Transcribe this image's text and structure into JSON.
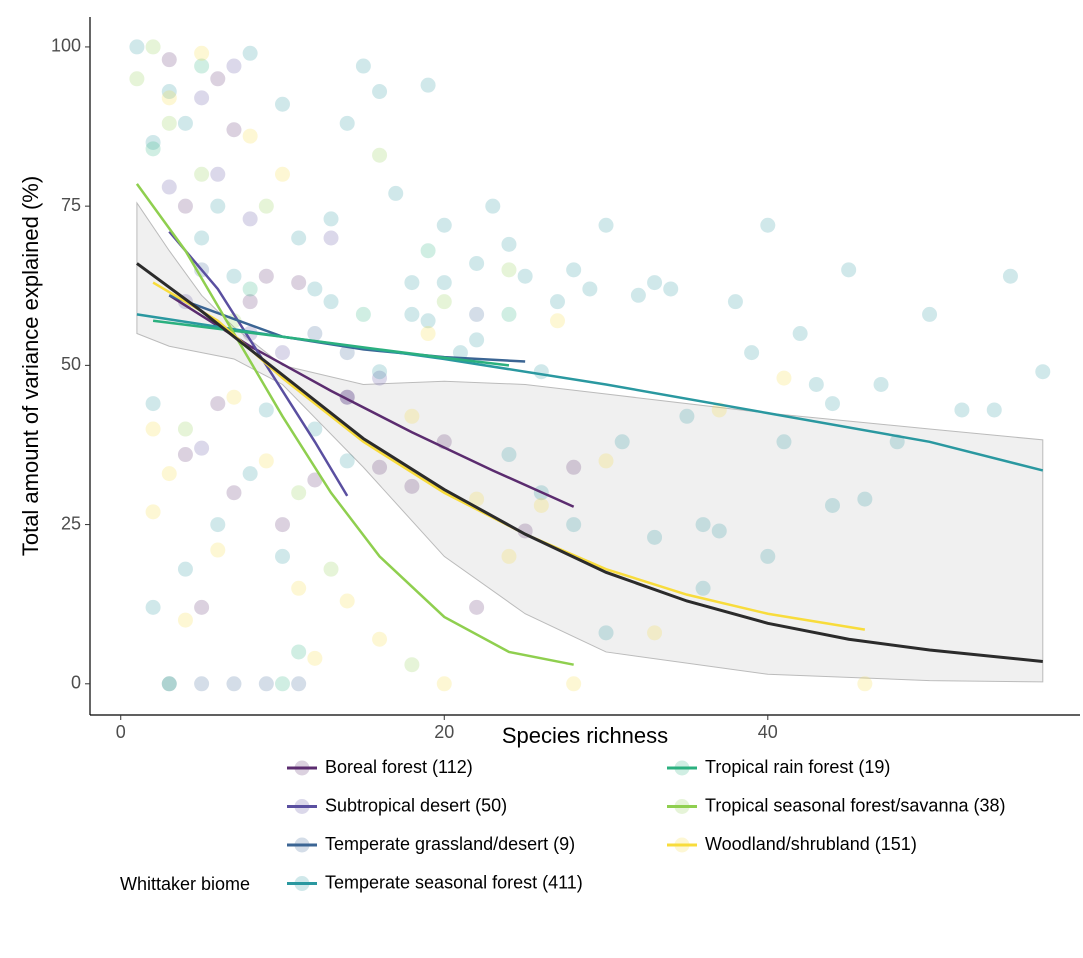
{
  "chart_data": {
    "type": "scatter",
    "x_label": "Species richness",
    "y_label": "Total amount of variance explained (%)",
    "xlim": [
      -1.9,
      59.3
    ],
    "ylim": [
      -4.9,
      104.7
    ],
    "xticks": [
      0,
      20,
      40
    ],
    "yticks": [
      0,
      25,
      50,
      75,
      100
    ],
    "grid": false,
    "legend_title": "Whittaker biome",
    "legend_position": "bottom",
    "series": [
      {
        "name": "Boreal forest (112)",
        "color": "#5b2c6f",
        "x": [
          3,
          4,
          5,
          6,
          7,
          7,
          8,
          9,
          10,
          11,
          12,
          14,
          16,
          18,
          20,
          22,
          25,
          28,
          4,
          6
        ],
        "y": [
          98,
          36,
          12,
          95,
          30,
          87,
          60,
          64,
          25,
          63,
          32,
          45,
          34,
          31,
          38,
          12,
          24,
          34,
          75,
          44
        ],
        "fit": {
          "x": [
            3,
            8,
            13,
            18,
            23,
            28
          ],
          "y": [
            61,
            53,
            46,
            39.5,
            33.5,
            27.8
          ]
        }
      },
      {
        "name": "Subtropical desert (50)",
        "color": "#5a4fa0",
        "x": [
          3,
          4,
          5,
          6,
          7,
          8,
          10,
          13,
          14,
          5,
          8,
          16
        ],
        "y": [
          78,
          60,
          92,
          80,
          97,
          73,
          52,
          70,
          45,
          37,
          55,
          48
        ],
        "fit": {
          "x": [
            3,
            6,
            9,
            12,
            14
          ],
          "y": [
            71,
            62,
            50,
            38,
            29.5
          ]
        }
      },
      {
        "name": "Temperate grassland/desert (9)",
        "color": "#3b6594",
        "x": [
          3,
          5,
          7,
          9,
          11,
          12,
          14,
          5,
          22
        ],
        "y": [
          0,
          0,
          0,
          0,
          0,
          55,
          52,
          65,
          58
        ],
        "fit": {
          "x": [
            3,
            10,
            15,
            20,
            25
          ],
          "y": [
            61,
            54.5,
            52.5,
            51.3,
            50.6
          ]
        }
      },
      {
        "name": "Temperate seasonal forest (411)",
        "color": "#2a98a0",
        "x": [
          1,
          2,
          2,
          3,
          4,
          5,
          6,
          7,
          8,
          9,
          10,
          11,
          12,
          13,
          14,
          15,
          16,
          17,
          18,
          19,
          20,
          21,
          22,
          23,
          24,
          25,
          26,
          27,
          28,
          29,
          30,
          31,
          32,
          33,
          34,
          35,
          36,
          37,
          38,
          39,
          40,
          41,
          42,
          43,
          44,
          45,
          46,
          47,
          48,
          50,
          52,
          54,
          55,
          57,
          2,
          4,
          6,
          8,
          10,
          12,
          14,
          16,
          18,
          20,
          22,
          24,
          26,
          28,
          30,
          33,
          36,
          40,
          44,
          13,
          19
        ],
        "y": [
          100,
          85,
          44,
          93,
          88,
          70,
          75,
          64,
          99,
          43,
          91,
          70,
          62,
          73,
          88,
          97,
          93,
          77,
          63,
          94,
          72,
          52,
          66,
          75,
          69,
          64,
          49,
          60,
          65,
          62,
          72,
          38,
          61,
          63,
          62,
          42,
          25,
          24,
          60,
          52,
          72,
          38,
          55,
          47,
          28,
          65,
          29,
          47,
          38,
          58,
          43,
          43,
          64,
          49,
          12,
          18,
          25,
          33,
          20,
          40,
          35,
          49,
          58,
          63,
          54,
          36,
          30,
          25,
          8,
          23,
          15,
          20,
          44,
          60,
          57
        ],
        "fit": {
          "x": [
            1,
            10,
            20,
            30,
            40,
            50,
            57
          ],
          "y": [
            58,
            54.5,
            51,
            47,
            42.5,
            38,
            33.5
          ]
        }
      },
      {
        "name": "Tropical rain forest (19)",
        "color": "#2bb07f",
        "x": [
          2,
          3,
          5,
          8,
          10,
          15,
          19,
          24,
          11
        ],
        "y": [
          84,
          0,
          97,
          62,
          0,
          58,
          68,
          58,
          5
        ],
        "fit": {
          "x": [
            2,
            10,
            16,
            20,
            24
          ],
          "y": [
            57,
            54.5,
            52.5,
            51.2,
            50
          ]
        }
      },
      {
        "name": "Tropical seasonal forest/savanna (38)",
        "color": "#8fcf4f",
        "x": [
          1,
          2,
          3,
          5,
          7,
          9,
          11,
          13,
          16,
          18,
          20,
          24,
          4
        ],
        "y": [
          95,
          100,
          88,
          80,
          57,
          75,
          30,
          18,
          83,
          3,
          60,
          65,
          40
        ],
        "fit": {
          "x": [
            1,
            4,
            7,
            10,
            13,
            16,
            20,
            24,
            28
          ],
          "y": [
            78.5,
            68,
            55,
            42,
            30,
            20,
            10.5,
            5,
            3
          ]
        }
      },
      {
        "name": "Woodland/shrubland (151)",
        "color": "#f8dc3c",
        "x": [
          2,
          2,
          3,
          4,
          5,
          6,
          7,
          8,
          9,
          10,
          12,
          14,
          16,
          18,
          20,
          22,
          24,
          26,
          28,
          30,
          33,
          37,
          41,
          46,
          3,
          11,
          19,
          27
        ],
        "y": [
          40,
          27,
          33,
          10,
          99,
          21,
          45,
          86,
          35,
          80,
          4,
          13,
          7,
          42,
          0,
          29,
          20,
          28,
          0,
          35,
          8,
          43,
          48,
          0,
          92,
          15,
          55,
          57
        ],
        "fit": {
          "x": [
            2,
            6,
            10,
            15,
            20,
            25,
            30,
            35,
            40,
            46
          ],
          "y": [
            63,
            57,
            48,
            38,
            30,
            23.5,
            18,
            14,
            11,
            8.5
          ]
        }
      }
    ],
    "overall_fit": {
      "color": "#2b2b2b",
      "x": [
        1,
        5,
        10,
        15,
        20,
        25,
        30,
        35,
        40,
        45,
        50,
        57
      ],
      "y": [
        66,
        58.5,
        48.5,
        38.5,
        30.5,
        23.5,
        17.5,
        13,
        9.5,
        7,
        5.3,
        3.5
      ]
    },
    "confidence_band": {
      "color": "#ebebeb",
      "x": [
        1,
        3,
        5,
        7,
        10,
        15,
        20,
        25,
        30,
        40,
        50,
        57
      ],
      "upper": [
        75.5,
        68,
        61,
        56,
        50,
        47,
        47.5,
        47,
        45.5,
        42.5,
        40,
        38.3
      ],
      "lower": [
        55,
        53,
        52,
        51,
        47,
        34,
        20,
        11,
        5,
        1.5,
        0.5,
        0.3
      ]
    }
  }
}
